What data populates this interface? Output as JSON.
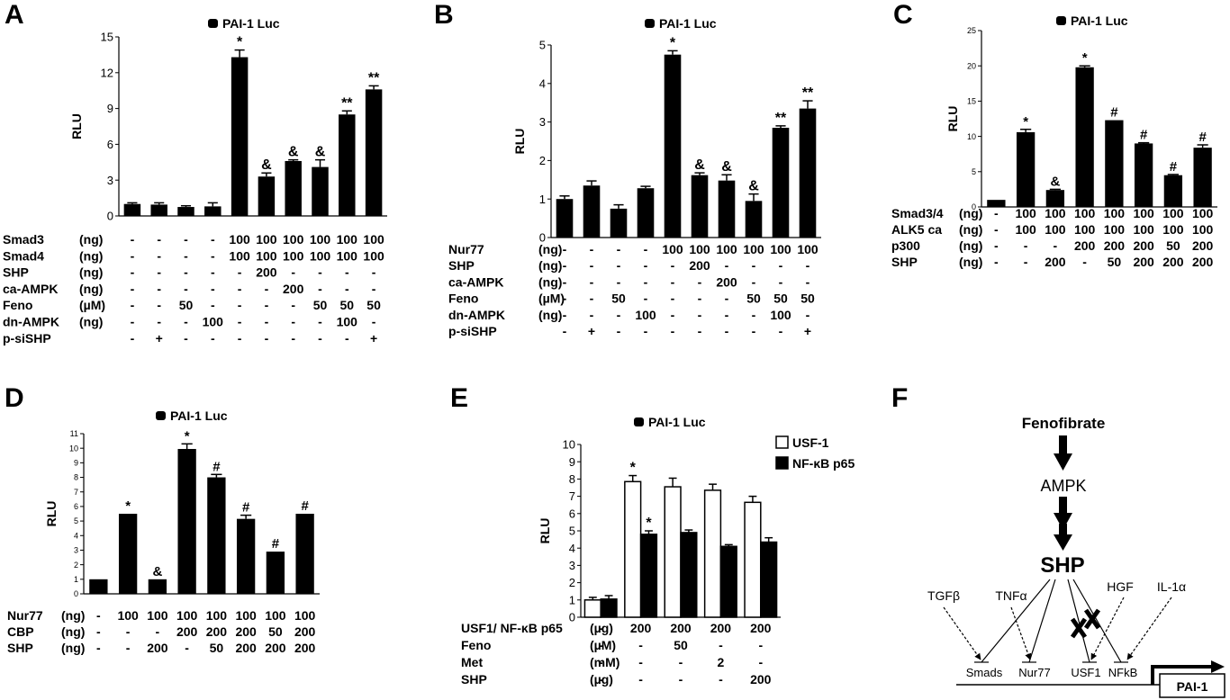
{
  "chart_data": [
    {
      "panel": "A",
      "type": "bar",
      "legend": "PAI-1 Luc",
      "ylabel": "RLU",
      "ylim": [
        0,
        15
      ],
      "yticks": [
        0,
        3,
        6,
        9,
        12,
        15
      ],
      "values": [
        1.0,
        0.95,
        0.75,
        0.8,
        13.3,
        3.3,
        4.6,
        4.1,
        8.5,
        10.6
      ],
      "errors": [
        0.1,
        0.15,
        0.1,
        0.3,
        0.6,
        0.3,
        0.1,
        0.6,
        0.3,
        0.3
      ],
      "marks": [
        "",
        "",
        "",
        "",
        "*",
        "&",
        "&",
        "&",
        "**",
        "**"
      ],
      "conditions": [
        {
          "label": "Smad3",
          "unit": "(ng)",
          "values": [
            "-",
            "-",
            "-",
            "-",
            "100",
            "100",
            "100",
            "100",
            "100",
            "100"
          ]
        },
        {
          "label": "Smad4",
          "unit": "(ng)",
          "values": [
            "-",
            "-",
            "-",
            "-",
            "100",
            "100",
            "100",
            "100",
            "100",
            "100"
          ]
        },
        {
          "label": "SHP",
          "unit": "(ng)",
          "values": [
            "-",
            "-",
            "-",
            "-",
            "-",
            "200",
            "-",
            "-",
            "-",
            "-"
          ]
        },
        {
          "label": "ca-AMPK",
          "unit": "(ng)",
          "values": [
            "-",
            "-",
            "-",
            "-",
            "-",
            "-",
            "200",
            "-",
            "-",
            "-"
          ]
        },
        {
          "label": "Feno",
          "unit": "(µM)",
          "values": [
            "-",
            "-",
            "50",
            "-",
            "-",
            "-",
            "-",
            "50",
            "50",
            "50"
          ]
        },
        {
          "label": "dn-AMPK",
          "unit": "(ng)",
          "values": [
            "-",
            "-",
            "-",
            "100",
            "-",
            "-",
            "-",
            "-",
            "100",
            "-"
          ]
        },
        {
          "label": "p-siSHP",
          "unit": "",
          "values": [
            "-",
            "+",
            "-",
            "-",
            "-",
            "-",
            "-",
            "-",
            "-",
            "+"
          ]
        }
      ]
    },
    {
      "panel": "B",
      "type": "bar",
      "legend": "PAI-1 Luc",
      "ylabel": "RLU",
      "ylim": [
        0,
        5
      ],
      "yticks": [
        0,
        1,
        2,
        3,
        4,
        5
      ],
      "values": [
        1.0,
        1.35,
        0.75,
        1.28,
        4.75,
        1.62,
        1.48,
        0.95,
        2.85,
        3.35
      ],
      "errors": [
        0.08,
        0.12,
        0.1,
        0.05,
        0.1,
        0.06,
        0.15,
        0.18,
        0.05,
        0.2
      ],
      "marks": [
        "",
        "",
        "",
        "",
        "*",
        "&",
        "&",
        "&",
        "**",
        "**"
      ],
      "conditions": [
        {
          "label": "Nur77",
          "unit": "(ng)",
          "values": [
            "-",
            "-",
            "-",
            "-",
            "100",
            "100",
            "100",
            "100",
            "100",
            "100"
          ]
        },
        {
          "label": "SHP",
          "unit": "(ng)",
          "values": [
            "-",
            "-",
            "-",
            "-",
            "-",
            "200",
            "-",
            "-",
            "-",
            "-"
          ]
        },
        {
          "label": "ca-AMPK",
          "unit": "(ng)",
          "values": [
            "-",
            "-",
            "-",
            "-",
            "-",
            "-",
            "200",
            "-",
            "-",
            "-"
          ]
        },
        {
          "label": "Feno",
          "unit": "(µM)",
          "values": [
            "-",
            "-",
            "50",
            "-",
            "-",
            "-",
            "-",
            "50",
            "50",
            "50"
          ]
        },
        {
          "label": "dn-AMPK",
          "unit": "(ng)",
          "values": [
            "-",
            "-",
            "-",
            "100",
            "-",
            "-",
            "-",
            "-",
            "100",
            "-"
          ]
        },
        {
          "label": "p-siSHP",
          "unit": "",
          "values": [
            "-",
            "+",
            "-",
            "-",
            "-",
            "-",
            "-",
            "-",
            "-",
            "+"
          ]
        }
      ]
    },
    {
      "panel": "C",
      "type": "bar",
      "legend": "PAI-1 Luc",
      "ylabel": "RLU",
      "ylim": [
        0,
        25
      ],
      "yticks": [
        0,
        5,
        10,
        15,
        20,
        25
      ],
      "values": [
        1.0,
        10.6,
        2.4,
        19.8,
        12.3,
        9.0,
        4.5,
        8.4
      ],
      "errors": [
        0,
        0.4,
        0.1,
        0.2,
        0,
        0.1,
        0.1,
        0.4
      ],
      "marks": [
        "",
        "*",
        "&",
        "*",
        "#",
        "#",
        "#",
        "#"
      ],
      "conditions": [
        {
          "label": "Smad3/4",
          "unit": "(ng)",
          "values": [
            "-",
            "100",
            "100",
            "100",
            "100",
            "100",
            "100",
            "100"
          ]
        },
        {
          "label": "ALK5 ca",
          "unit": "(ng)",
          "values": [
            "-",
            "100",
            "100",
            "100",
            "100",
            "100",
            "100",
            "100"
          ]
        },
        {
          "label": "p300",
          "unit": "(ng)",
          "values": [
            "-",
            "-",
            "-",
            "200",
            "200",
            "200",
            "50",
            "200"
          ]
        },
        {
          "label": "SHP",
          "unit": "(ng)",
          "values": [
            "-",
            "-",
            "200",
            "-",
            "50",
            "200",
            "200",
            "200"
          ]
        }
      ]
    },
    {
      "panel": "D",
      "type": "bar",
      "legend": "PAI-1 Luc",
      "ylabel": "RLU",
      "ylim": [
        0,
        11
      ],
      "yticks": [
        0,
        1,
        2,
        3,
        4,
        5,
        6,
        7,
        8,
        9,
        10,
        11
      ],
      "values": [
        1.0,
        5.5,
        1.0,
        9.95,
        8.0,
        5.15,
        2.9,
        5.5
      ],
      "errors": [
        0,
        0,
        0,
        0.35,
        0.2,
        0.25,
        0,
        0
      ],
      "marks": [
        "",
        "*",
        "&",
        "*",
        "#",
        "#",
        "#",
        "#"
      ],
      "conditions": [
        {
          "label": "Nur77",
          "unit": "(ng)",
          "values": [
            "-",
            "100",
            "100",
            "100",
            "100",
            "100",
            "100",
            "100"
          ]
        },
        {
          "label": "CBP",
          "unit": "(ng)",
          "values": [
            "-",
            "-",
            "-",
            "200",
            "200",
            "200",
            "50",
            "200"
          ]
        },
        {
          "label": "SHP",
          "unit": "(ng)",
          "values": [
            "-",
            "-",
            "200",
            "-",
            "50",
            "200",
            "200",
            "200"
          ]
        }
      ]
    },
    {
      "panel": "E",
      "type": "bar",
      "legend": "PAI-1 Luc",
      "ylabel": "RLU",
      "ylim": [
        0,
        10
      ],
      "yticks": [
        0,
        1,
        2,
        3,
        4,
        5,
        6,
        7,
        8,
        9,
        10
      ],
      "series": [
        {
          "name": "USF-1",
          "values": [
            1.0,
            7.85,
            7.55,
            7.35,
            6.65
          ],
          "errors": [
            0.15,
            0.35,
            0.5,
            0.35,
            0.35
          ],
          "marks": [
            "",
            "*",
            "",
            "",
            ""
          ]
        },
        {
          "name": "NF-κB p65",
          "values": [
            1.05,
            4.8,
            4.9,
            4.1,
            4.35
          ],
          "errors": [
            0.2,
            0.2,
            0.15,
            0.1,
            0.25
          ],
          "marks": [
            "",
            "*",
            "",
            "",
            ""
          ]
        }
      ],
      "conditions": [
        {
          "label": "USF1/ NF-κB p65",
          "unit": "(µg)",
          "values": [
            "-",
            "200",
            "200",
            "200",
            "200"
          ]
        },
        {
          "label": "Feno",
          "unit": "(µM)",
          "values": [
            "-",
            "-",
            "50",
            "-",
            "-"
          ]
        },
        {
          "label": "Met",
          "unit": "(mM)",
          "values": [
            "-",
            "-",
            "-",
            "2",
            "-"
          ]
        },
        {
          "label": "SHP",
          "unit": "(µg)",
          "values": [
            "-",
            "-",
            "-",
            "-",
            "200"
          ]
        }
      ]
    }
  ],
  "panels": {
    "A": "A",
    "B": "B",
    "C": "C",
    "D": "D",
    "E": "E",
    "F": "F"
  },
  "diagram": {
    "fenofibrate": "Fenofibrate",
    "ampk": "AMPK",
    "shp": "SHP",
    "tgfb": "TGFβ",
    "tnfa": "TNFα",
    "hgf": "HGF",
    "il1a": "IL-1α",
    "smads": "Smads",
    "nur77": "Nur77",
    "usf1": "USF1",
    "nfkb": "NFkB",
    "pai1": "PAI-1"
  }
}
